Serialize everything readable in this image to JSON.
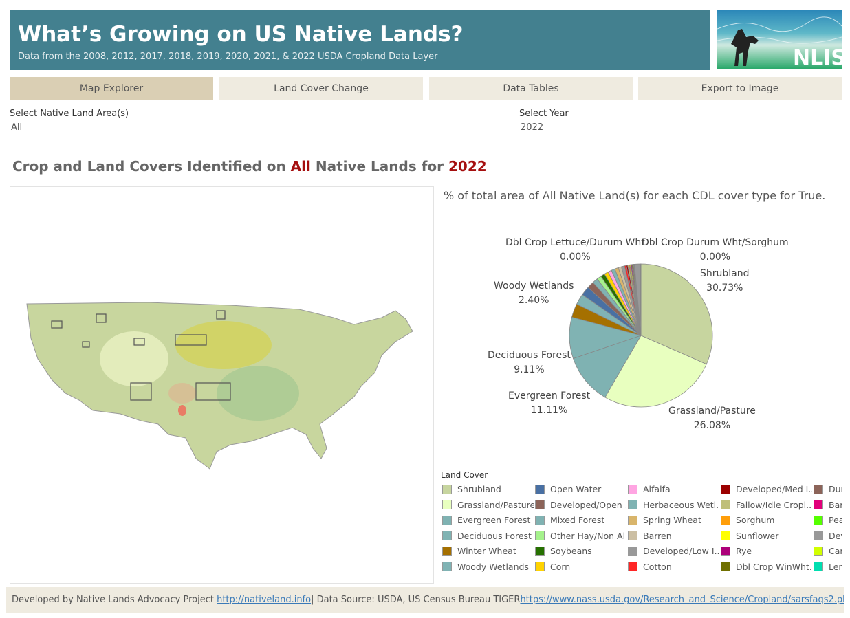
{
  "header": {
    "title": "What’s Growing on US Native Lands?",
    "subtitle": "Data from the 2008, 2012, 2017, 2018, 2019, 2020, 2021, & 2022 USDA Cropland Data Layer",
    "logo_text": "NLIS"
  },
  "tabs": [
    {
      "label": "Map Explorer",
      "active": true
    },
    {
      "label": "Land Cover Change"
    },
    {
      "label": "Data Tables"
    },
    {
      "label": "Export to Image"
    }
  ],
  "filters": {
    "area_label": "Select Native Land Area(s)",
    "area_value": "All",
    "year_label": "Select Year",
    "year_value": "2022"
  },
  "heading": {
    "prefix": "Crop and Land Covers Identified on ",
    "area": "All",
    "middle": " Native Lands for ",
    "year": "2022"
  },
  "chart_title": "% of total area of All Native Land(s) for each CDL cover type for True.",
  "chart_data": {
    "type": "pie",
    "title": "% of total area of All Native Land(s) for each CDL cover type for True.",
    "labels_shown": [
      {
        "name": "Dbl Crop Lettuce/Durum Wht",
        "value": "0.00%"
      },
      {
        "name": "Dbl Crop Durum Wht/Sorghum",
        "value": "0.00%"
      },
      {
        "name": "Shrubland",
        "value": "30.73%"
      },
      {
        "name": "Woody Wetlands",
        "value": "2.40%"
      },
      {
        "name": "Deciduous Forest",
        "value": "9.11%"
      },
      {
        "name": "Evergreen Forest",
        "value": "11.11%"
      },
      {
        "name": "Grassland/Pasture",
        "value": "26.08%"
      }
    ],
    "slices": [
      {
        "name": "Shrubland",
        "value": 30.73,
        "color": "#c7d59f"
      },
      {
        "name": "Grassland/Pasture",
        "value": 26.08,
        "color": "#e8ffbf"
      },
      {
        "name": "Evergreen Forest",
        "value": 11.11,
        "color": "#7fb2b2"
      },
      {
        "name": "Deciduous Forest",
        "value": 9.11,
        "color": "#80b3b3"
      },
      {
        "name": "Winter Wheat",
        "value": 3.0,
        "color": "#a57000"
      },
      {
        "name": "Woody Wetlands",
        "value": 2.4,
        "color": "#80b3b4"
      },
      {
        "name": "Open Water",
        "value": 2.0,
        "color": "#4970a3"
      },
      {
        "name": "Developed/Open ..",
        "value": 1.5,
        "color": "#8c6459"
      },
      {
        "name": "Mixed Forest",
        "value": 1.2,
        "color": "#80b2b2"
      },
      {
        "name": "Other Hay/Non Al..",
        "value": 1.0,
        "color": "#a5f28c"
      },
      {
        "name": "Soybeans",
        "value": 0.9,
        "color": "#267000"
      },
      {
        "name": "Corn",
        "value": 0.9,
        "color": "#ffd300"
      },
      {
        "name": "Alfalfa",
        "value": 0.8,
        "color": "#ffa5e2"
      },
      {
        "name": "Herbaceous Wetl..",
        "value": 0.8,
        "color": "#7fb3b3"
      },
      {
        "name": "Spring Wheat",
        "value": 0.8,
        "color": "#d9b56b"
      },
      {
        "name": "Barren",
        "value": 0.7,
        "color": "#ccbfa3"
      },
      {
        "name": "Developed/Low I..",
        "value": 0.7,
        "color": "#999999"
      },
      {
        "name": "Cotton",
        "value": 0.4,
        "color": "#ff2626"
      },
      {
        "name": "Developed/Med I..",
        "value": 0.3,
        "color": "#9c0000"
      },
      {
        "name": "Fallow/Idle Cropl..",
        "value": 0.3,
        "color": "#bfbf7a"
      },
      {
        "name": "Sorghum",
        "value": 0.2,
        "color": "#ff9e0a"
      },
      {
        "name": "Sunflower",
        "value": 0.2,
        "color": "#ffff00"
      },
      {
        "name": "Rye",
        "value": 0.2,
        "color": "#ad007a"
      },
      {
        "name": "Dbl Crop WinWht..",
        "value": 0.2,
        "color": "#707000"
      },
      {
        "name": "Dur",
        "value": 0.2,
        "color": "#8c6459"
      },
      {
        "name": "Bar",
        "value": 0.1,
        "color": "#e1007a"
      },
      {
        "name": "Pea",
        "value": 0.1,
        "color": "#55ff00"
      },
      {
        "name": "Dev",
        "value": 1.2,
        "color": "#999999"
      },
      {
        "name": "Car",
        "value": 0.1,
        "color": "#d1ff00"
      },
      {
        "name": "Len",
        "value": 0.1,
        "color": "#00deb0"
      }
    ]
  },
  "legend": {
    "title": "Land Cover"
  },
  "footer": {
    "text1": "Developed by Native Lands Advocacy Project ",
    "link1": "http://nativeland.info",
    "text2": " | Data Source: USDA, US Census Bureau TIGER ",
    "link2": "https://www.nass.usda.gov/Research_and_Science/Cropland/sarsfaqs2.php"
  }
}
